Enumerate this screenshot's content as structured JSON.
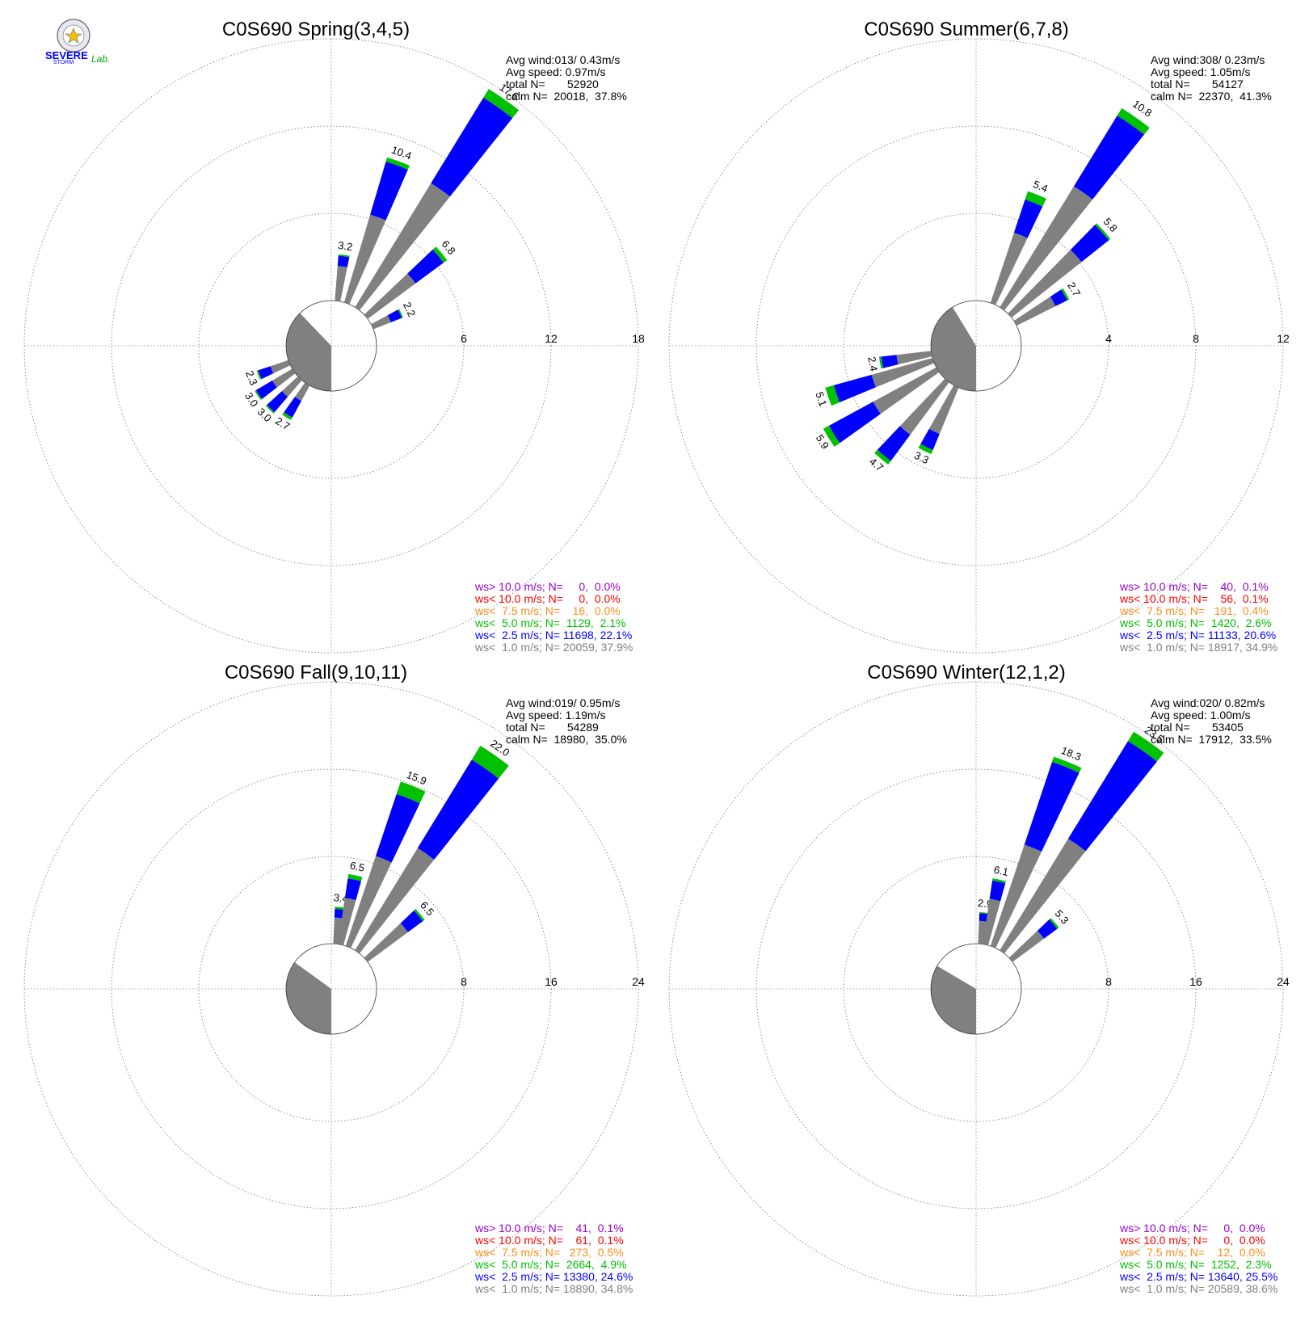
{
  "logo": {
    "text_severe": "SEVERE",
    "text_storm": "STORM",
    "text_lab": "Lab."
  },
  "colors": {
    "gray": "#808080",
    "blue": "#0000ff",
    "green": "#00c000",
    "orange": "#ff8c1a",
    "red": "#ff0000",
    "purple": "#9900cc",
    "calm_fill": "#808080"
  },
  "chart_data": [
    {
      "type": "windrose",
      "title": "C0S690 Spring(3,4,5)",
      "rings": [
        "6",
        "12",
        "18"
      ],
      "ring_max": 18,
      "info": {
        "avg_wind": "Avg wind:013/ 0.43m/s",
        "avg_speed": "Avg speed: 0.97m/s",
        "total": "total N=       52920",
        "calm": "calm N=  20018,  37.8%"
      },
      "legend": [
        {
          "text": "ws> 10.0 m/s; N=     0,  0.0%",
          "color": "#9900cc"
        },
        {
          "text": "ws< 10.0 m/s; N=     0,  0.0%",
          "color": "#ff0000"
        },
        {
          "text": "ws<  7.5 m/s; N=    16,  0.0%",
          "color": "#ff8c1a"
        },
        {
          "text": "ws<  5.0 m/s; N=  1129,  2.1%",
          "color": "#00c000"
        },
        {
          "text": "ws<  2.5 m/s; N= 11698, 22.1%",
          "color": "#0000ff"
        },
        {
          "text": "ws<  1.0 m/s; N= 20059, 37.9%",
          "color": "#808080"
        }
      ],
      "calm_pct": 37.8,
      "bars": [
        {
          "dir": 8,
          "total": 3.2,
          "gray": 2.4,
          "blue": 0.7,
          "green": 0.1,
          "label": "3.2"
        },
        {
          "dir": 20,
          "total": 10.4,
          "gray": 6.3,
          "blue": 3.8,
          "green": 0.3,
          "label": "10.4"
        },
        {
          "dir": 35,
          "total": 17.6,
          "gray": 10.0,
          "blue": 6.9,
          "green": 0.7,
          "label": "17.6"
        },
        {
          "dir": 50,
          "total": 6.8,
          "gray": 4.1,
          "blue": 2.4,
          "green": 0.3,
          "label": "6.8"
        },
        {
          "dir": 65,
          "total": 2.2,
          "gray": 1.3,
          "blue": 0.8,
          "green": 0.1,
          "label": "2.2"
        },
        {
          "dir": 212,
          "total": 2.7,
          "gray": 1.2,
          "blue": 1.3,
          "green": 0.2,
          "label": "2.7"
        },
        {
          "dir": 224,
          "total": 3.0,
          "gray": 1.5,
          "blue": 1.4,
          "green": 0.1,
          "label": "3.0"
        },
        {
          "dir": 236,
          "total": 3.0,
          "gray": 1.6,
          "blue": 1.3,
          "green": 0.1,
          "label": "3.0"
        },
        {
          "dir": 248,
          "total": 2.3,
          "gray": 1.3,
          "blue": 0.9,
          "green": 0.1,
          "label": "2.3"
        }
      ]
    },
    {
      "type": "windrose",
      "title": "C0S690 Summer(6,7,8)",
      "rings": [
        "4",
        "8",
        "12"
      ],
      "ring_max": 12,
      "info": {
        "avg_wind": "Avg wind:308/ 0.23m/s",
        "avg_speed": "Avg speed: 1.05m/s",
        "total": "total N=       54127",
        "calm": "calm N=  22370,  41.3%"
      },
      "legend": [
        {
          "text": "ws> 10.0 m/s; N=    40,  0.1%",
          "color": "#9900cc"
        },
        {
          "text": "ws< 10.0 m/s; N=    56,  0.1%",
          "color": "#ff0000"
        },
        {
          "text": "ws<  7.5 m/s; N=   191,  0.4%",
          "color": "#ff8c1a"
        },
        {
          "text": "ws<  5.0 m/s; N=  1420,  2.6%",
          "color": "#00c000"
        },
        {
          "text": "ws<  2.5 m/s; N= 11133, 20.6%",
          "color": "#0000ff"
        },
        {
          "text": "ws<  1.0 m/s; N= 18917, 34.9%",
          "color": "#808080"
        }
      ],
      "calm_pct": 41.3,
      "bars": [
        {
          "dir": 22,
          "total": 5.4,
          "gray": 3.4,
          "blue": 1.6,
          "green": 0.4,
          "label": "5.4"
        },
        {
          "dir": 35,
          "total": 10.8,
          "gray": 6.5,
          "blue": 3.8,
          "green": 0.4,
          "label": "10.8"
        },
        {
          "dir": 48,
          "total": 5.8,
          "gray": 4.1,
          "blue": 1.6,
          "green": 0.1,
          "label": "5.8"
        },
        {
          "dir": 60,
          "total": 2.7,
          "gray": 2.0,
          "blue": 0.6,
          "green": 0.1,
          "label": "2.7"
        },
        {
          "dir": 206,
          "total": 3.3,
          "gray": 2.3,
          "blue": 0.8,
          "green": 0.2,
          "label": "3.3"
        },
        {
          "dir": 220,
          "total": 4.7,
          "gray": 3.0,
          "blue": 1.5,
          "green": 0.2,
          "label": "4.7"
        },
        {
          "dir": 238,
          "total": 5.9,
          "gray": 3.3,
          "blue": 2.3,
          "green": 0.3,
          "label": "5.9"
        },
        {
          "dir": 251,
          "total": 5.1,
          "gray": 2.9,
          "blue": 1.8,
          "green": 0.4,
          "label": "5.1"
        },
        {
          "dir": 260,
          "total": 2.4,
          "gray": 1.6,
          "blue": 0.7,
          "green": 0.1,
          "label": "2.4"
        }
      ]
    },
    {
      "type": "windrose",
      "title": "C0S690 Fall(9,10,11)",
      "rings": [
        "8",
        "16",
        "24"
      ],
      "ring_max": 24,
      "info": {
        "avg_wind": "Avg wind:019/ 0.95m/s",
        "avg_speed": "Avg speed: 1.19m/s",
        "total": "total N=       54289",
        "calm": "calm N=  18980,  35.0%"
      },
      "legend": [
        {
          "text": "ws> 10.0 m/s; N=    41,  0.1%",
          "color": "#9900cc"
        },
        {
          "text": "ws< 10.0 m/s; N=    61,  0.1%",
          "color": "#ff0000"
        },
        {
          "text": "ws<  7.5 m/s; N=   273,  0.5%",
          "color": "#ff8c1a"
        },
        {
          "text": "ws<  5.0 m/s; N=  2664,  4.9%",
          "color": "#00c000"
        },
        {
          "text": "ws<  2.5 m/s; N= 13380, 24.6%",
          "color": "#0000ff"
        },
        {
          "text": "ws<  1.0 m/s; N= 18890, 34.8%",
          "color": "#808080"
        }
      ],
      "calm_pct": 35.0,
      "bars": [
        {
          "dir": 6,
          "total": 3.4,
          "gray": 2.4,
          "blue": 0.8,
          "green": 0.2,
          "label": "3.4"
        },
        {
          "dir": 12,
          "total": 6.5,
          "gray": 4.3,
          "blue": 1.8,
          "green": 0.4,
          "label": "6.5"
        },
        {
          "dir": 22,
          "total": 15.9,
          "gray": 8.7,
          "blue": 6.0,
          "green": 1.2,
          "label": "15.9"
        },
        {
          "dir": 35,
          "total": 22.0,
          "gray": 11.0,
          "blue": 9.5,
          "green": 1.5,
          "label": "22.0"
        },
        {
          "dir": 50,
          "total": 6.5,
          "gray": 4.6,
          "blue": 1.7,
          "green": 0.2,
          "label": "6.5"
        }
      ]
    },
    {
      "type": "windrose",
      "title": "C0S690 Winter(12,1,2)",
      "rings": [
        "8",
        "16",
        "24"
      ],
      "ring_max": 24,
      "info": {
        "avg_wind": "Avg wind:020/ 0.82m/s",
        "avg_speed": "Avg speed: 1.00m/s",
        "total": "total N=       53405",
        "calm": "calm N=  17912,  33.5%"
      },
      "legend": [
        {
          "text": "ws> 10.0 m/s; N=     0,  0.0%",
          "color": "#9900cc"
        },
        {
          "text": "ws< 10.0 m/s; N=     0,  0.0%",
          "color": "#ff0000"
        },
        {
          "text": "ws<  7.5 m/s; N=    12,  0.0%",
          "color": "#ff8c1a"
        },
        {
          "text": "ws<  5.0 m/s; N=  1252,  2.3%",
          "color": "#00c000"
        },
        {
          "text": "ws<  2.5 m/s; N= 13640, 25.5%",
          "color": "#0000ff"
        },
        {
          "text": "ws<  1.0 m/s; N= 20589, 38.6%",
          "color": "#808080"
        }
      ],
      "calm_pct": 33.5,
      "bars": [
        {
          "dir": 6,
          "total": 2.9,
          "gray": 2.1,
          "blue": 0.7,
          "green": 0.1,
          "label": "2.9"
        },
        {
          "dir": 12,
          "total": 6.1,
          "gray": 4.2,
          "blue": 1.7,
          "green": 0.2,
          "label": "6.1"
        },
        {
          "dir": 22,
          "total": 18.3,
          "gray": 9.8,
          "blue": 8.0,
          "green": 0.5,
          "label": "18.3"
        },
        {
          "dir": 35,
          "total": 23.5,
          "gray": 12.0,
          "blue": 10.5,
          "green": 1.0,
          "label": "23.5"
        },
        {
          "dir": 50,
          "total": 5.3,
          "gray": 3.6,
          "blue": 1.5,
          "green": 0.2,
          "label": "5.3"
        }
      ]
    }
  ]
}
